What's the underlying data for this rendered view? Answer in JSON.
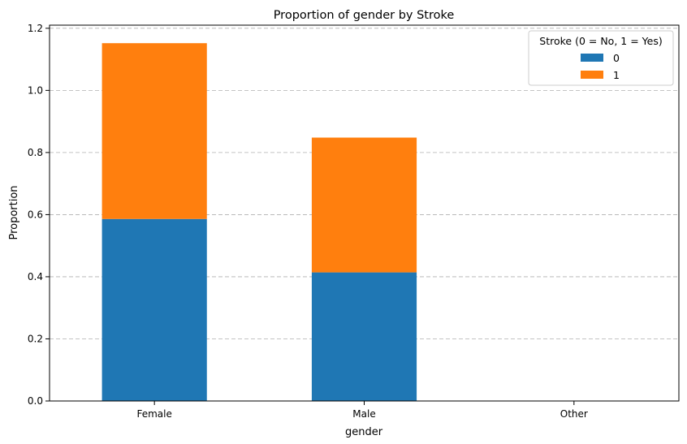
{
  "chart_data": {
    "type": "bar",
    "stacked": true,
    "title": "Proportion of gender by Stroke",
    "xlabel": "gender",
    "ylabel": "Proportion",
    "categories": [
      "Female",
      "Male",
      "Other"
    ],
    "series": [
      {
        "name": "0",
        "color": "#1f77b4",
        "values": [
          0.586,
          0.414,
          0.0002
        ]
      },
      {
        "name": "1",
        "color": "#ff7f0e",
        "values": [
          0.566,
          0.434,
          0.0
        ]
      }
    ],
    "ylim": [
      0,
      1.21
    ],
    "yticks": [
      "0.0",
      "0.2",
      "0.4",
      "0.6",
      "0.8",
      "1.0",
      "1.2"
    ],
    "grid": "y-dashed",
    "legend": {
      "title": "Stroke (0 = No, 1 = Yes)",
      "position": "top-right"
    }
  }
}
